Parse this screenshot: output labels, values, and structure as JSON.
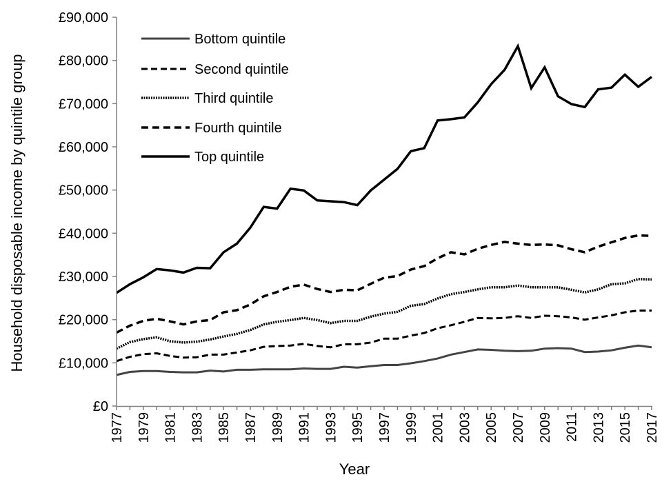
{
  "chart_data": {
    "type": "line",
    "title": "",
    "xlabel": "Year",
    "ylabel": "Household disposable income by quintile group",
    "xlim": [
      1977,
      2017
    ],
    "ylim": [
      0,
      90000
    ],
    "y_ticks": [
      "£0",
      "£10,000",
      "£20,000",
      "£30,000",
      "£40,000",
      "£50,000",
      "£60,000",
      "£70,000",
      "£80,000",
      "£90,000"
    ],
    "x_ticks": [
      "1977",
      "1979",
      "1981",
      "1983",
      "1985",
      "1987",
      "1989",
      "1991",
      "1993",
      "1995",
      "1997",
      "1999",
      "2001",
      "2003",
      "2005",
      "2007",
      "2009",
      "2011",
      "2013",
      "2015",
      "2017"
    ],
    "grid": false,
    "legend_position": "top-left",
    "x": [
      1977,
      1978,
      1979,
      1980,
      1981,
      1982,
      1983,
      1984,
      1985,
      1986,
      1987,
      1988,
      1989,
      1990,
      1991,
      1992,
      1993,
      1994,
      1995,
      1996,
      1997,
      1998,
      1999,
      2000,
      2001,
      2002,
      2003,
      2004,
      2005,
      2006,
      2007,
      2008,
      2009,
      2010,
      2011,
      2012,
      2013,
      2014,
      2015,
      2016,
      2017
    ],
    "series": [
      {
        "name": "Bottom quintile",
        "color": "#444444",
        "style": "solid",
        "values": [
          7200,
          7900,
          8100,
          8100,
          7900,
          7800,
          7800,
          8200,
          8000,
          8400,
          8400,
          8500,
          8500,
          8500,
          8700,
          8600,
          8600,
          9100,
          8900,
          9200,
          9500,
          9500,
          9900,
          10400,
          11000,
          11900,
          12500,
          13100,
          13000,
          12800,
          12700,
          12800,
          13300,
          13400,
          13300,
          12500,
          12600,
          12900,
          13500,
          14000,
          13600
        ]
      },
      {
        "name": "Second quintile",
        "color": "#000000",
        "style": "dashed",
        "values": [
          10400,
          11400,
          12000,
          12200,
          11600,
          11200,
          11300,
          11900,
          11900,
          12400,
          12900,
          13700,
          13900,
          14000,
          14400,
          13900,
          13600,
          14300,
          14300,
          14700,
          15600,
          15600,
          16300,
          16900,
          18000,
          18700,
          19500,
          20400,
          20300,
          20400,
          20800,
          20400,
          20900,
          20800,
          20500,
          20000,
          20500,
          21000,
          21700,
          22100,
          22100
        ]
      },
      {
        "name": "Third quintile",
        "color": "#000000",
        "style": "dotted",
        "values": [
          13300,
          14800,
          15500,
          15900,
          15000,
          14700,
          14900,
          15400,
          16100,
          16700,
          17600,
          18900,
          19500,
          19900,
          20400,
          19900,
          19200,
          19700,
          19700,
          20700,
          21400,
          21800,
          23200,
          23600,
          24900,
          25900,
          26400,
          27000,
          27500,
          27500,
          27900,
          27500,
          27500,
          27500,
          26900,
          26300,
          27000,
          28200,
          28400,
          29400,
          29300
        ]
      },
      {
        "name": "Fourth quintile",
        "color": "#000000",
        "style": "dashed-heavy",
        "values": [
          17000,
          18600,
          19700,
          20200,
          19600,
          18900,
          19600,
          19900,
          21700,
          22200,
          23500,
          25400,
          26400,
          27600,
          28100,
          27100,
          26400,
          26900,
          26800,
          28300,
          29700,
          30100,
          31600,
          32400,
          34200,
          35600,
          35100,
          36400,
          37300,
          38000,
          37600,
          37300,
          37400,
          37200,
          36300,
          35600,
          36900,
          37900,
          38900,
          39500,
          39400
        ]
      },
      {
        "name": "Top quintile",
        "color": "#000000",
        "style": "solid-heavy",
        "values": [
          26200,
          28200,
          29800,
          31700,
          31400,
          30900,
          32000,
          31900,
          35600,
          37600,
          41300,
          46100,
          45700,
          50300,
          49900,
          47600,
          47400,
          47200,
          46500,
          49900,
          52400,
          54900,
          59000,
          59700,
          66100,
          66400,
          66800,
          70300,
          74500,
          77800,
          83300,
          73600,
          78400,
          71700,
          69900,
          69200,
          73300,
          73700,
          76700,
          73900,
          76200
        ]
      }
    ]
  }
}
